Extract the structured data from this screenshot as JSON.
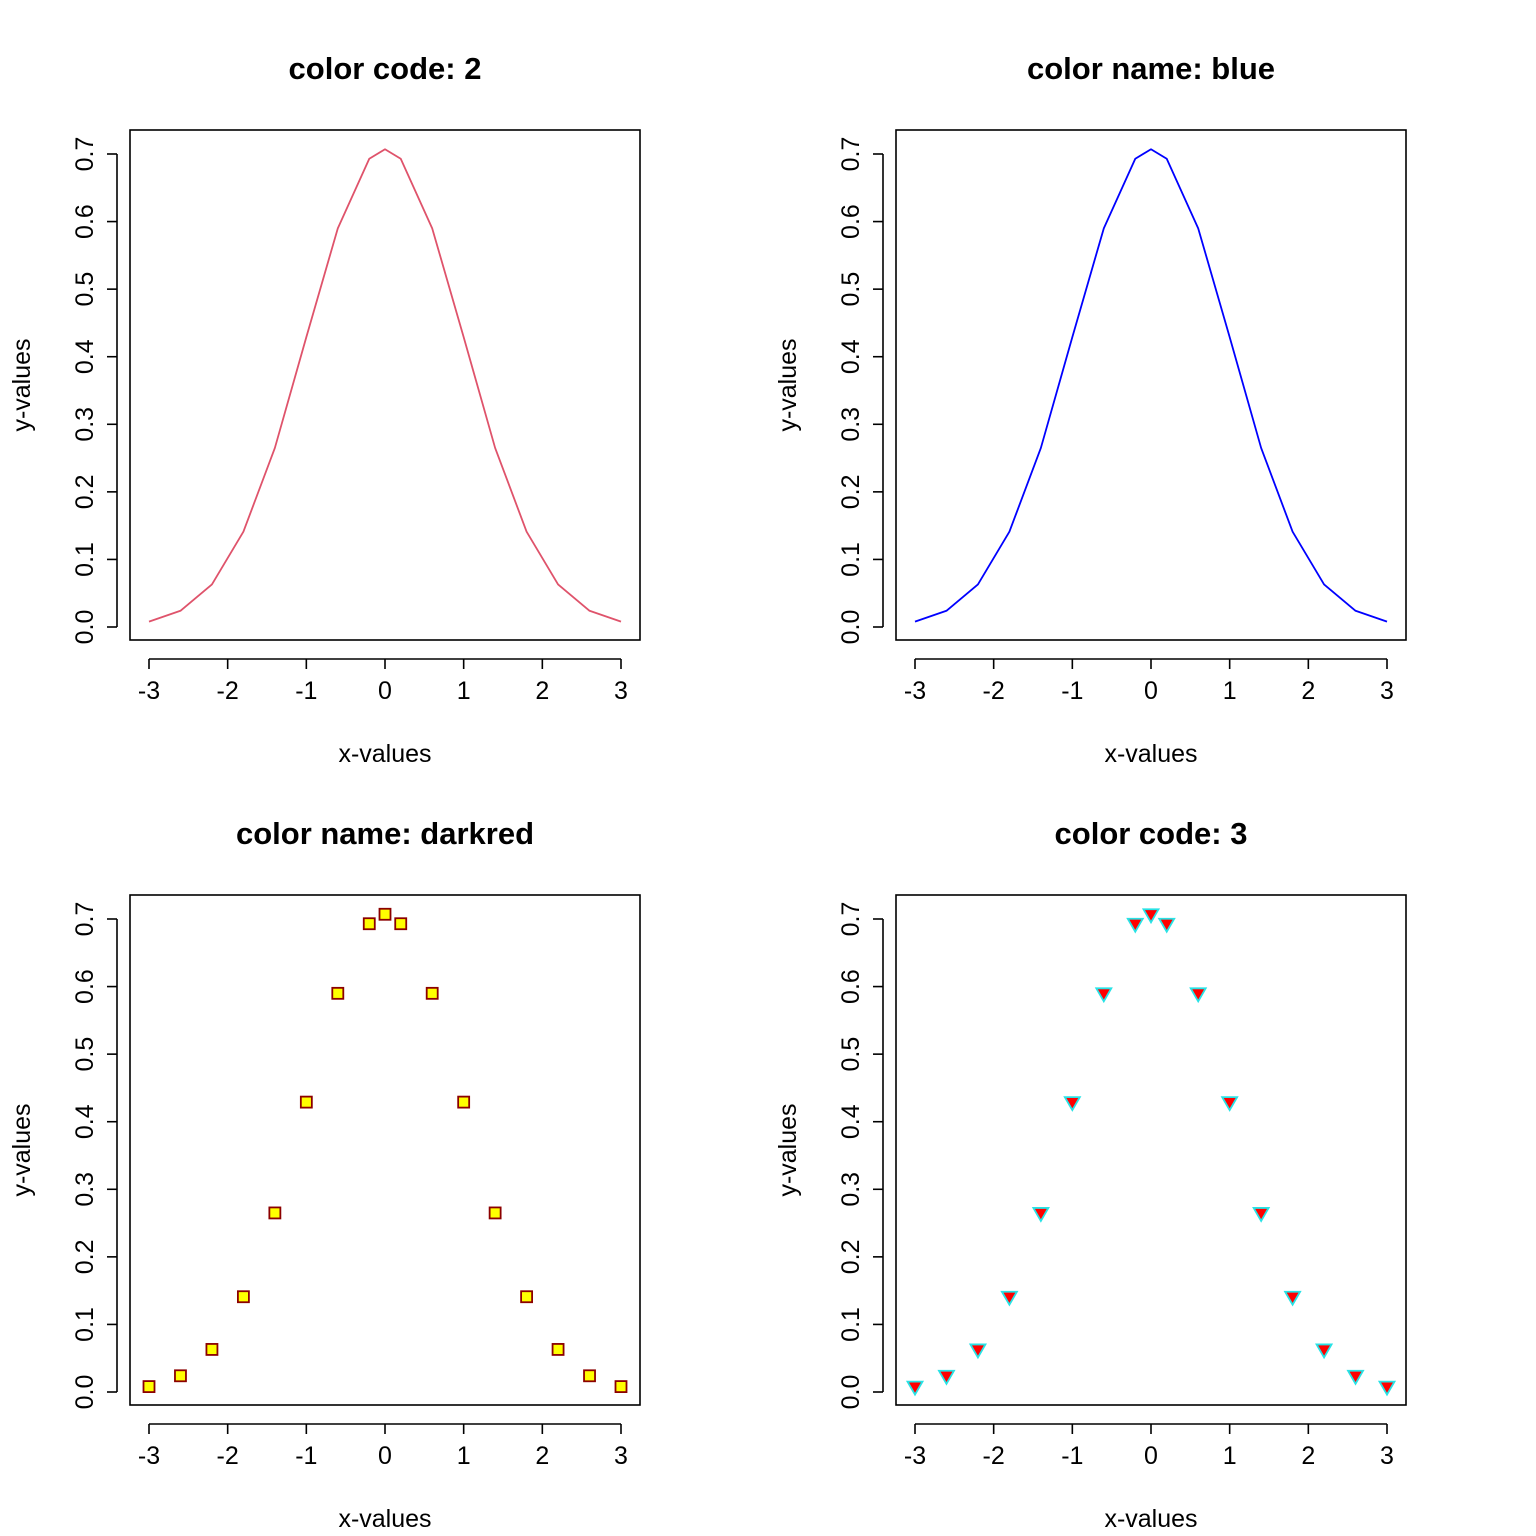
{
  "chart_data": [
    {
      "type": "line",
      "title": "color code: 2",
      "xlabel": "x-values",
      "ylabel": "y-values",
      "xlim": [
        -3,
        3
      ],
      "ylim": [
        0,
        0.7
      ],
      "x_ticks": [
        "-3",
        "-2",
        "-1",
        "0",
        "1",
        "2",
        "3"
      ],
      "y_ticks": [
        "0.0",
        "0.1",
        "0.2",
        "0.3",
        "0.4",
        "0.5",
        "0.6",
        "0.7"
      ],
      "x": [
        -3.0,
        -2.6,
        -2.2,
        -1.8,
        -1.4,
        -1.0,
        -0.6,
        -0.2,
        0.0,
        0.2,
        0.6,
        1.0,
        1.4,
        1.8,
        2.2,
        2.6,
        3.0
      ],
      "y": [
        0.008,
        0.024,
        0.063,
        0.141,
        0.265,
        0.429,
        0.59,
        0.693,
        0.707,
        0.693,
        0.59,
        0.429,
        0.265,
        0.141,
        0.063,
        0.024,
        0.008
      ],
      "style": {
        "line_color": "#DF536B",
        "marker": "none"
      },
      "grid": false
    },
    {
      "type": "line",
      "title": "color name: blue",
      "xlabel": "x-values",
      "ylabel": "y-values",
      "xlim": [
        -3,
        3
      ],
      "ylim": [
        0,
        0.7
      ],
      "x_ticks": [
        "-3",
        "-2",
        "-1",
        "0",
        "1",
        "2",
        "3"
      ],
      "y_ticks": [
        "0.0",
        "0.1",
        "0.2",
        "0.3",
        "0.4",
        "0.5",
        "0.6",
        "0.7"
      ],
      "x": [
        -3.0,
        -2.6,
        -2.2,
        -1.8,
        -1.4,
        -1.0,
        -0.6,
        -0.2,
        0.0,
        0.2,
        0.6,
        1.0,
        1.4,
        1.8,
        2.2,
        2.6,
        3.0
      ],
      "y": [
        0.008,
        0.024,
        0.063,
        0.141,
        0.265,
        0.429,
        0.59,
        0.693,
        0.707,
        0.693,
        0.59,
        0.429,
        0.265,
        0.141,
        0.063,
        0.024,
        0.008
      ],
      "style": {
        "line_color": "#0000FF",
        "marker": "none"
      },
      "grid": false
    },
    {
      "type": "scatter",
      "title": "color name: darkred",
      "xlabel": "x-values",
      "ylabel": "y-values",
      "xlim": [
        -3,
        3
      ],
      "ylim": [
        0,
        0.7
      ],
      "x_ticks": [
        "-3",
        "-2",
        "-1",
        "0",
        "1",
        "2",
        "3"
      ],
      "y_ticks": [
        "0.0",
        "0.1",
        "0.2",
        "0.3",
        "0.4",
        "0.5",
        "0.6",
        "0.7"
      ],
      "x": [
        -3.0,
        -2.6,
        -2.2,
        -1.8,
        -1.4,
        -1.0,
        -0.6,
        -0.2,
        0.0,
        0.2,
        0.6,
        1.0,
        1.4,
        1.8,
        2.2,
        2.6,
        3.0
      ],
      "y": [
        0.008,
        0.024,
        0.063,
        0.141,
        0.265,
        0.429,
        0.59,
        0.693,
        0.707,
        0.693,
        0.59,
        0.429,
        0.265,
        0.141,
        0.063,
        0.024,
        0.008
      ],
      "style": {
        "marker": "square",
        "marker_edge": "#8B0000",
        "marker_fill": "#FFFF00"
      },
      "grid": false
    },
    {
      "type": "scatter",
      "title": "color code: 3",
      "xlabel": "x-values",
      "ylabel": "y-values",
      "xlim": [
        -3,
        3
      ],
      "ylim": [
        0,
        0.7
      ],
      "x_ticks": [
        "-3",
        "-2",
        "-1",
        "0",
        "1",
        "2",
        "3"
      ],
      "y_ticks": [
        "0.0",
        "0.1",
        "0.2",
        "0.3",
        "0.4",
        "0.5",
        "0.6",
        "0.7"
      ],
      "x": [
        -3.0,
        -2.6,
        -2.2,
        -1.8,
        -1.4,
        -1.0,
        -0.6,
        -0.2,
        0.0,
        0.2,
        0.6,
        1.0,
        1.4,
        1.8,
        2.2,
        2.6,
        3.0
      ],
      "y": [
        0.008,
        0.024,
        0.063,
        0.141,
        0.265,
        0.429,
        0.59,
        0.693,
        0.707,
        0.693,
        0.59,
        0.429,
        0.265,
        0.141,
        0.063,
        0.024,
        0.008
      ],
      "style": {
        "marker": "triangle-down",
        "marker_edge": "#28E2E5",
        "marker_fill": "#FF0000"
      },
      "grid": false
    }
  ]
}
